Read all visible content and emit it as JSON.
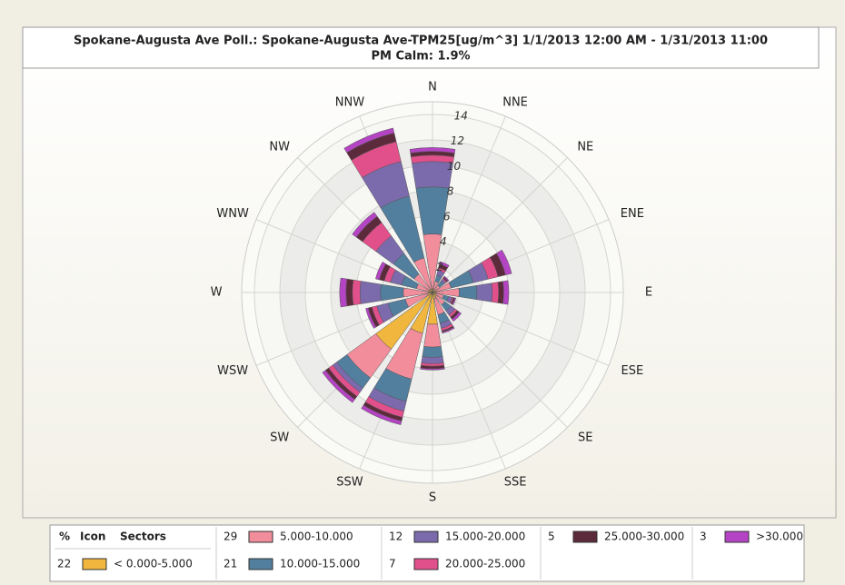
{
  "chart_data": {
    "type": "windrose",
    "title": "Spokane-Augusta Ave Poll.: Spokane-Augusta Ave-TPM25[ug/m^3] 1/1/2013 12:00 AM - 1/31/2013 11:00",
    "subtitle": "PM Calm: 1.9%",
    "categories": [
      "N",
      "NNE",
      "NE",
      "ENE",
      "E",
      "ESE",
      "SE",
      "SSE",
      "S",
      "SSW",
      "SW",
      "WSW",
      "W",
      "WNW",
      "NW",
      "NNW"
    ],
    "rlim": [
      0,
      15
    ],
    "rticks": [
      2,
      4,
      6,
      8,
      10,
      12,
      14
    ],
    "legend_header": [
      "%",
      "Icon",
      "Sectors"
    ],
    "series": [
      {
        "name": "< 0.000-5.000",
        "percent": 22,
        "color": "#f0b63e",
        "values": [
          0.3,
          0.3,
          0.2,
          0.3,
          0.3,
          0.3,
          0.4,
          0.5,
          2.5,
          3.3,
          5.5,
          0.4,
          0.3,
          0.3,
          0.3,
          0.3
        ]
      },
      {
        "name": "5.000-10.000",
        "percent": 29,
        "color": "#f28d9c",
        "values": [
          4.3,
          0.6,
          0.5,
          1.2,
          1.8,
          0.6,
          0.8,
          1.3,
          1.8,
          3.7,
          2.8,
          1.8,
          2.0,
          1.0,
          1.5,
          2.5
        ]
      },
      {
        "name": "10.000-15.000",
        "percent": 21,
        "color": "#527f9e",
        "values": [
          3.7,
          0.5,
          0.4,
          1.8,
          1.4,
          0.4,
          0.6,
          0.7,
          0.8,
          1.8,
          1.0,
          1.4,
          1.8,
          1.2,
          2.0,
          5.0
        ]
      },
      {
        "name": "15.000-20.000",
        "percent": 12,
        "color": "#7b6bad",
        "values": [
          2.0,
          0.4,
          0.2,
          1.2,
          1.2,
          0.3,
          0.4,
          0.4,
          0.5,
          0.8,
          0.4,
          0.9,
          1.6,
          0.9,
          1.7,
          2.8
        ]
      },
      {
        "name": "20.000-25.000",
        "percent": 7,
        "color": "#e2508c",
        "values": [
          0.5,
          0.2,
          0.1,
          0.8,
          0.5,
          0.1,
          0.2,
          0.2,
          0.2,
          0.5,
          0.4,
          0.4,
          0.6,
          0.5,
          1.3,
          1.6
        ]
      },
      {
        "name": "25.000-30.000",
        "percent": 5,
        "color": "#5c2b3b",
        "values": [
          0.3,
          0.3,
          0.1,
          0.6,
          0.4,
          0.1,
          0.2,
          0.1,
          0.2,
          0.3,
          0.3,
          0.3,
          0.5,
          0.4,
          0.6,
          0.7
        ]
      },
      {
        "name": ">30.000",
        "percent": 3,
        "color": "#b444c4",
        "values": [
          0.3,
          0.2,
          0.1,
          0.5,
          0.4,
          0.1,
          0.2,
          0.1,
          0.1,
          0.3,
          0.3,
          0.2,
          0.5,
          0.3,
          0.4,
          0.4
        ]
      }
    ]
  }
}
